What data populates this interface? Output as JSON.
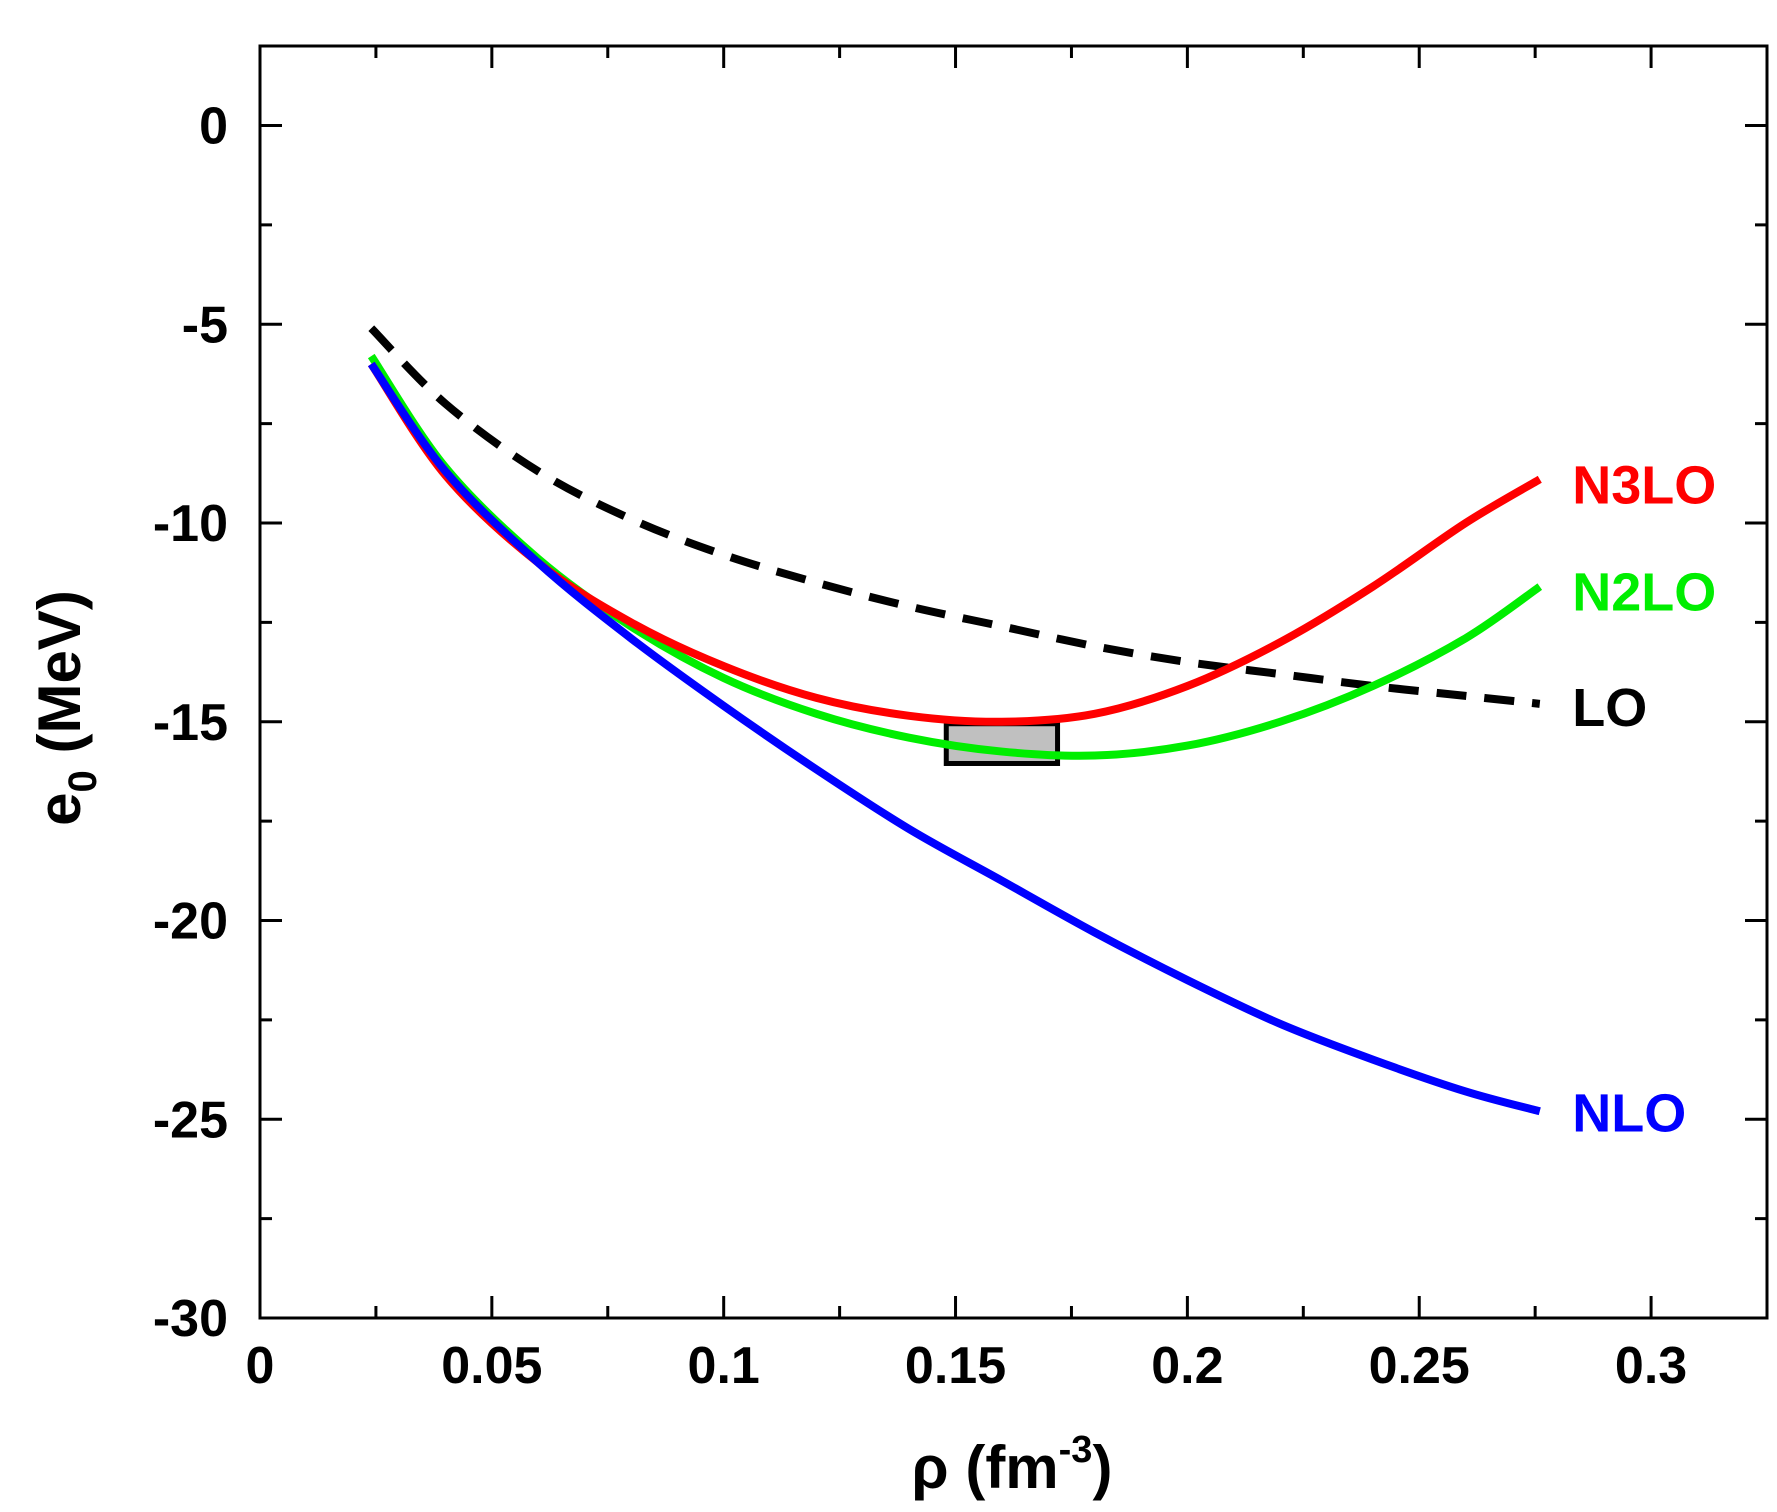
{
  "chart_data": {
    "type": "line",
    "xlabel": {
      "base": "ρ (fm",
      "sup": "-3",
      "tail": ")"
    },
    "ylabel": {
      "base": "e",
      "sub": "0",
      "tail": " (MeV)"
    },
    "xlim": [
      0,
      0.325
    ],
    "ylim": [
      -30,
      2
    ],
    "x_ticks": [
      0,
      0.05,
      0.1,
      0.15,
      0.2,
      0.25,
      0.3
    ],
    "x_tick_labels": [
      "0",
      "0.05",
      "0.1",
      "0.15",
      "0.2",
      "0.25",
      "0.3"
    ],
    "y_ticks": [
      0,
      -5,
      -10,
      -15,
      -20,
      -25,
      -30
    ],
    "y_tick_labels": [
      "0",
      "-5",
      "-10",
      "-15",
      "-20",
      "-25",
      "-30"
    ],
    "grid": false,
    "series": [
      {
        "name": "LO",
        "color": "#000000",
        "dashed": true,
        "x": [
          0.024,
          0.04,
          0.06,
          0.08,
          0.1,
          0.12,
          0.14,
          0.16,
          0.18,
          0.2,
          0.22,
          0.24,
          0.26,
          0.276
        ],
        "y": [
          -5.1,
          -7.0,
          -8.7,
          -9.9,
          -10.8,
          -11.5,
          -12.1,
          -12.6,
          -13.1,
          -13.5,
          -13.8,
          -14.1,
          -14.35,
          -14.55
        ]
      },
      {
        "name": "NLO",
        "color": "#0000ff",
        "dashed": false,
        "x": [
          0.024,
          0.04,
          0.06,
          0.08,
          0.1,
          0.12,
          0.14,
          0.16,
          0.18,
          0.2,
          0.22,
          0.24,
          0.26,
          0.276
        ],
        "y": [
          -6.0,
          -8.7,
          -11.0,
          -12.9,
          -14.6,
          -16.2,
          -17.7,
          -19.0,
          -20.3,
          -21.5,
          -22.6,
          -23.5,
          -24.3,
          -24.8
        ]
      },
      {
        "name": "N2LO",
        "color": "#00ee00",
        "dashed": false,
        "x": [
          0.024,
          0.04,
          0.06,
          0.08,
          0.1,
          0.12,
          0.14,
          0.16,
          0.18,
          0.2,
          0.22,
          0.24,
          0.26,
          0.276
        ],
        "y": [
          -5.8,
          -8.6,
          -10.9,
          -12.6,
          -13.9,
          -14.8,
          -15.4,
          -15.75,
          -15.85,
          -15.6,
          -15.0,
          -14.1,
          -12.9,
          -11.6
        ]
      },
      {
        "name": "N3LO",
        "color": "#ff0000",
        "dashed": false,
        "x": [
          0.024,
          0.04,
          0.06,
          0.08,
          0.1,
          0.12,
          0.14,
          0.16,
          0.18,
          0.2,
          0.22,
          0.24,
          0.26,
          0.276
        ],
        "y": [
          -6.0,
          -8.8,
          -11.0,
          -12.5,
          -13.6,
          -14.4,
          -14.85,
          -15.0,
          -14.8,
          -14.1,
          -13.0,
          -11.6,
          -10.0,
          -8.9
        ]
      }
    ],
    "empirical_box": {
      "x": [
        0.148,
        0.172
      ],
      "y": [
        -15.05,
        -16.05
      ],
      "fill": "#c0c0c0"
    },
    "labels": [
      {
        "text": "N3LO",
        "color": "#ff0000",
        "x": 0.283,
        "y": -9.0
      },
      {
        "text": "N2LO",
        "color": "#00ee00",
        "x": 0.283,
        "y": -11.7
      },
      {
        "text": "LO",
        "color": "#000000",
        "x": 0.283,
        "y": -14.6
      },
      {
        "text": "NLO",
        "color": "#0000ff",
        "x": 0.283,
        "y": -24.8
      }
    ]
  }
}
